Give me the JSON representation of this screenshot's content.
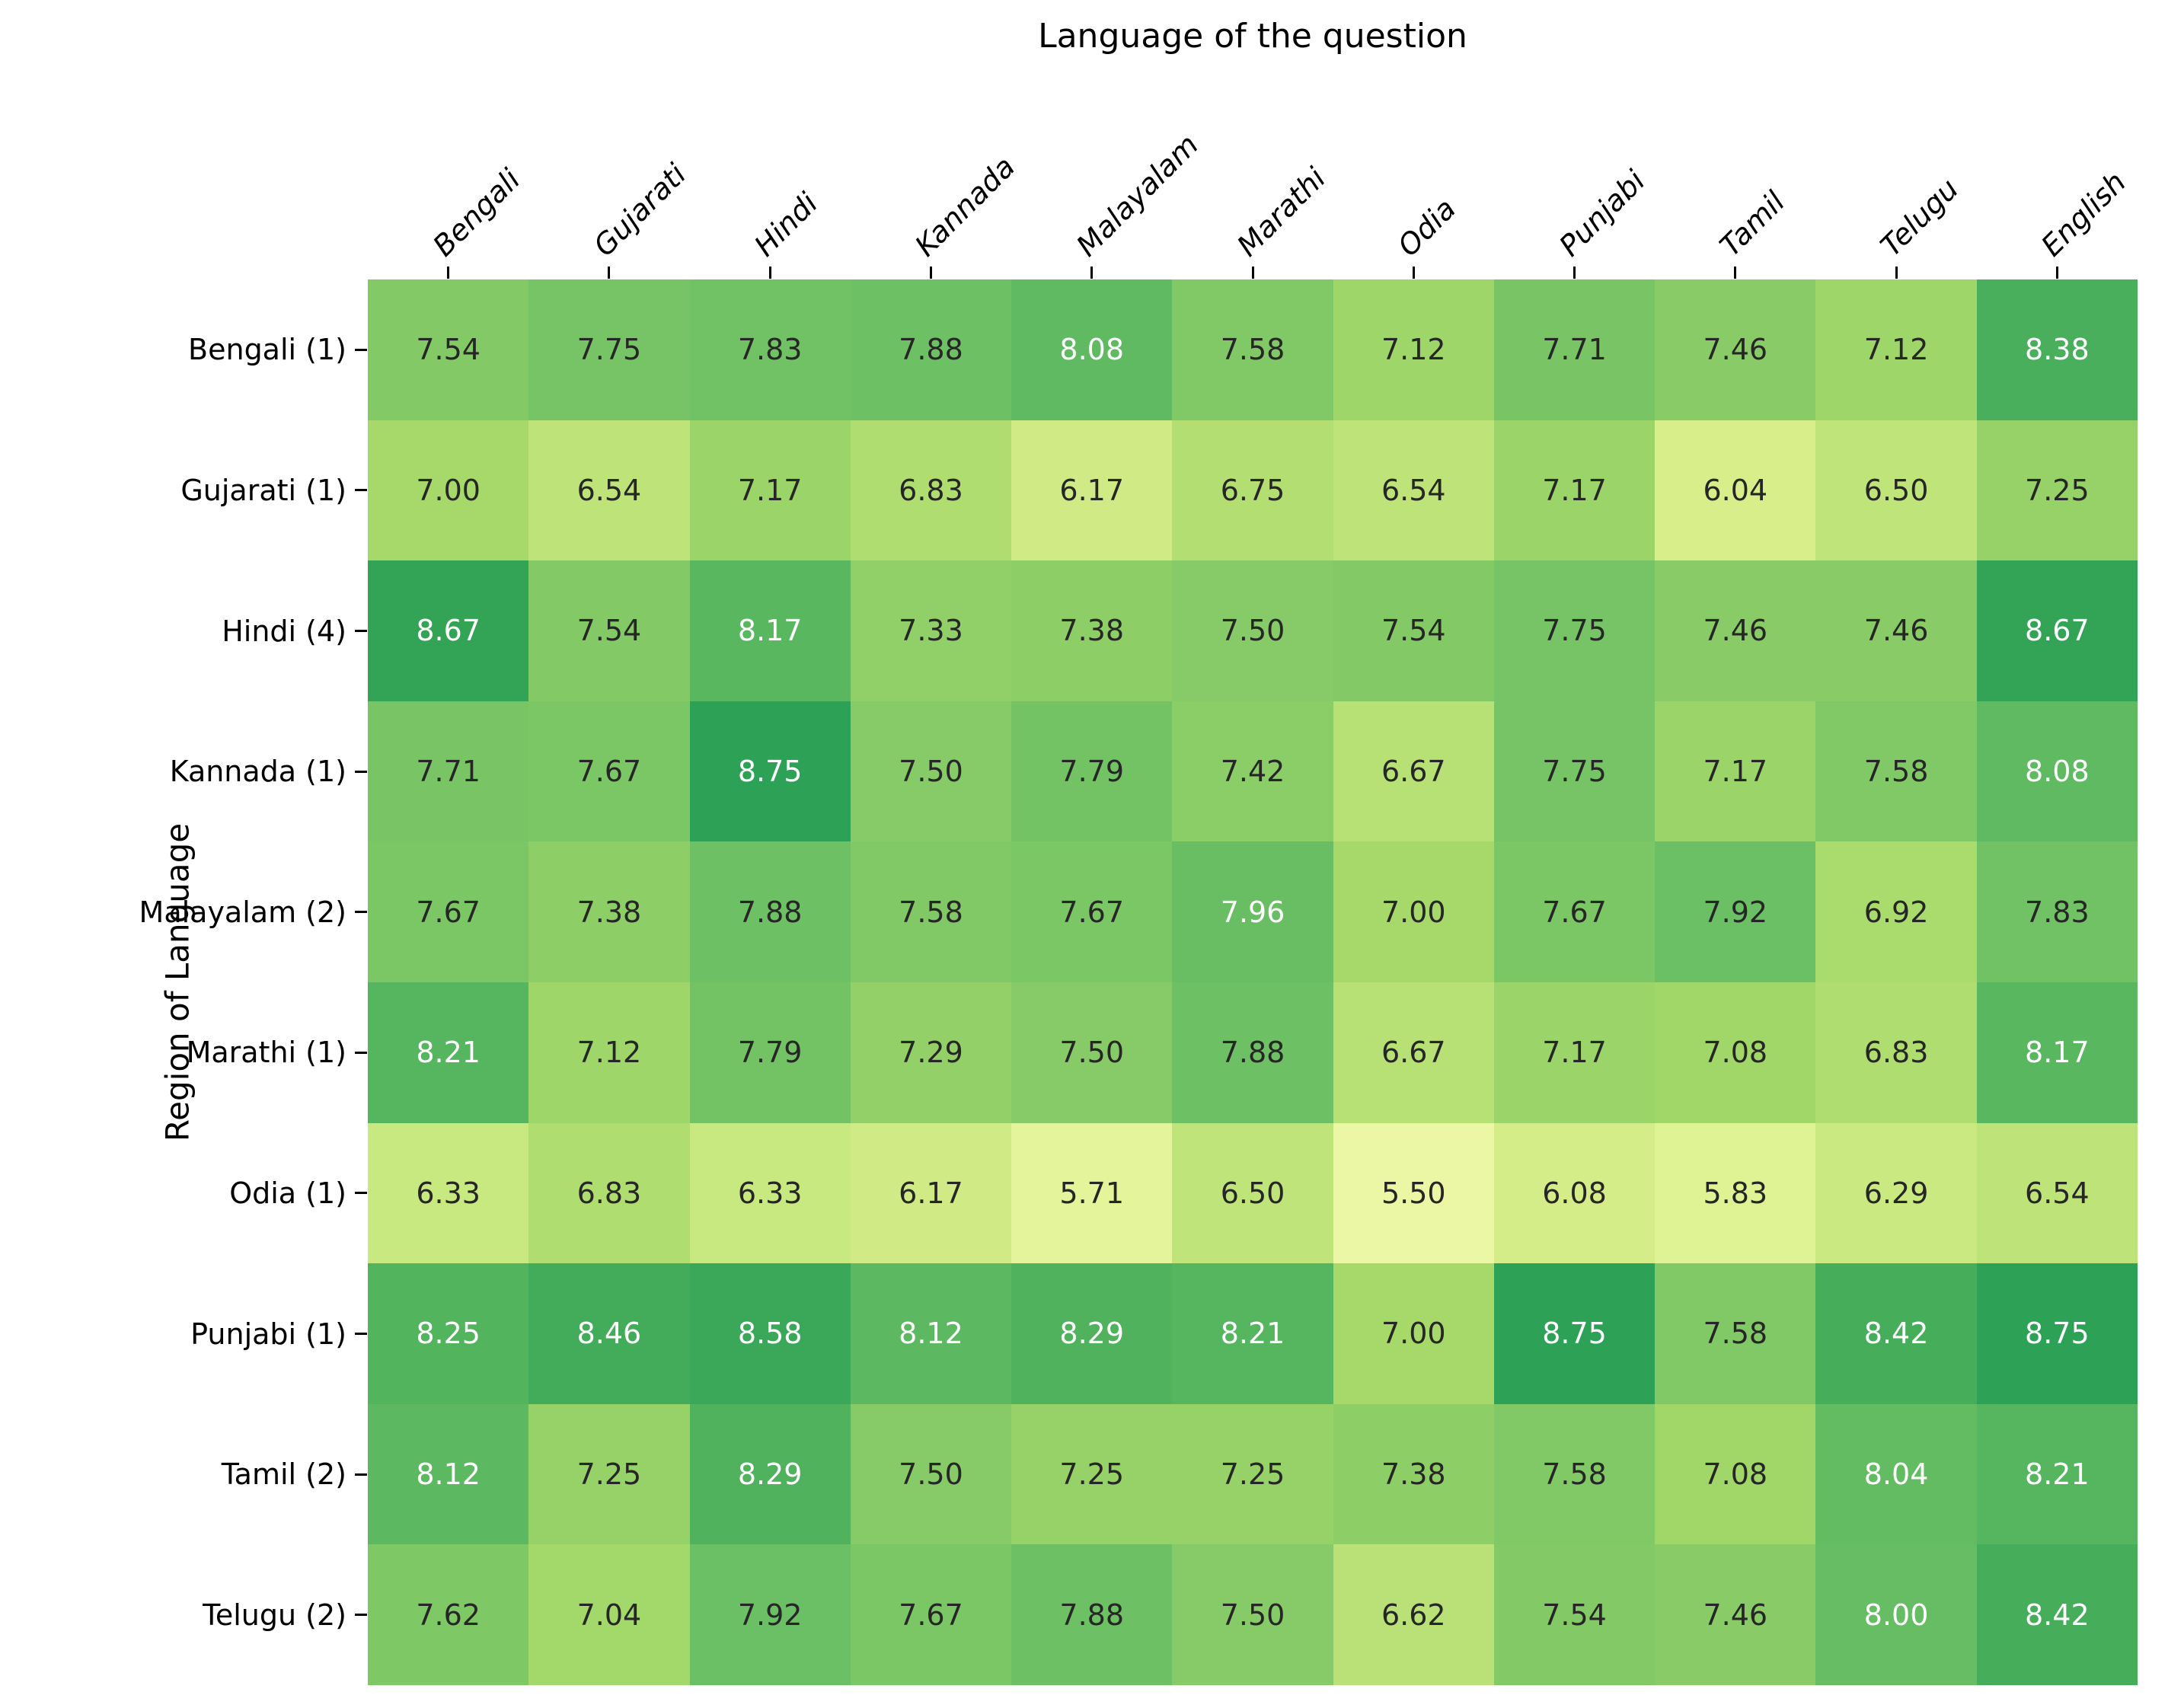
{
  "chart_data": {
    "type": "heatmap",
    "xlabel": "Language of the question",
    "ylabel": "Region of Language",
    "columns": [
      "Bengali",
      "Gujarati",
      "Hindi",
      "Kannada",
      "Malayalam",
      "Marathi",
      "Odia",
      "Punjabi",
      "Tamil",
      "Telugu",
      "English"
    ],
    "rows": [
      "Bengali (1)",
      "Gujarati (1)",
      "Hindi (4)",
      "Kannada (1)",
      "Malayalam (2)",
      "Marathi (1)",
      "Odia (1)",
      "Punjabi (1)",
      "Tamil (2)",
      "Telugu (2)"
    ],
    "values": [
      [
        7.54,
        7.75,
        7.83,
        7.88,
        8.08,
        7.58,
        7.12,
        7.71,
        7.46,
        7.12,
        8.38
      ],
      [
        7.0,
        6.54,
        7.17,
        6.83,
        6.17,
        6.75,
        6.54,
        7.17,
        6.04,
        6.5,
        7.25
      ],
      [
        8.67,
        7.54,
        8.17,
        7.33,
        7.38,
        7.5,
        7.54,
        7.75,
        7.46,
        7.46,
        8.67
      ],
      [
        7.71,
        7.67,
        8.75,
        7.5,
        7.79,
        7.42,
        6.67,
        7.75,
        7.17,
        7.58,
        8.08
      ],
      [
        7.67,
        7.38,
        7.88,
        7.58,
        7.67,
        7.96,
        7.0,
        7.67,
        7.92,
        6.92,
        7.83
      ],
      [
        8.21,
        7.12,
        7.79,
        7.29,
        7.5,
        7.88,
        6.67,
        7.17,
        7.08,
        6.83,
        8.17
      ],
      [
        6.33,
        6.83,
        6.33,
        6.17,
        5.71,
        6.5,
        5.5,
        6.08,
        5.83,
        6.29,
        6.54
      ],
      [
        8.25,
        8.46,
        8.58,
        8.12,
        8.29,
        8.21,
        7.0,
        8.75,
        7.58,
        8.42,
        8.75
      ],
      [
        8.12,
        7.25,
        8.29,
        7.5,
        7.25,
        7.25,
        7.38,
        7.58,
        7.08,
        8.04,
        8.21
      ],
      [
        7.62,
        7.04,
        7.92,
        7.67,
        7.88,
        7.5,
        6.62,
        7.54,
        7.46,
        8.0,
        8.42
      ]
    ],
    "value_decimals": 2,
    "colormap": {
      "name": "RdYlGn",
      "vmin": 0,
      "vmax": 10,
      "stops": [
        [
          0.0,
          "#a50026"
        ],
        [
          0.1,
          "#d73027"
        ],
        [
          0.2,
          "#f46d43"
        ],
        [
          0.3,
          "#fdae61"
        ],
        [
          0.4,
          "#fee08b"
        ],
        [
          0.5,
          "#ffffbf"
        ],
        [
          0.6,
          "#d9ef8b"
        ],
        [
          0.7,
          "#a6d96a"
        ],
        [
          0.8,
          "#66bd63"
        ],
        [
          0.9,
          "#1a9850"
        ],
        [
          1.0,
          "#006837"
        ]
      ]
    },
    "annotation_text_dark": "#262626",
    "annotation_text_light": "#ffffff",
    "legend": "none",
    "grid": "off"
  }
}
